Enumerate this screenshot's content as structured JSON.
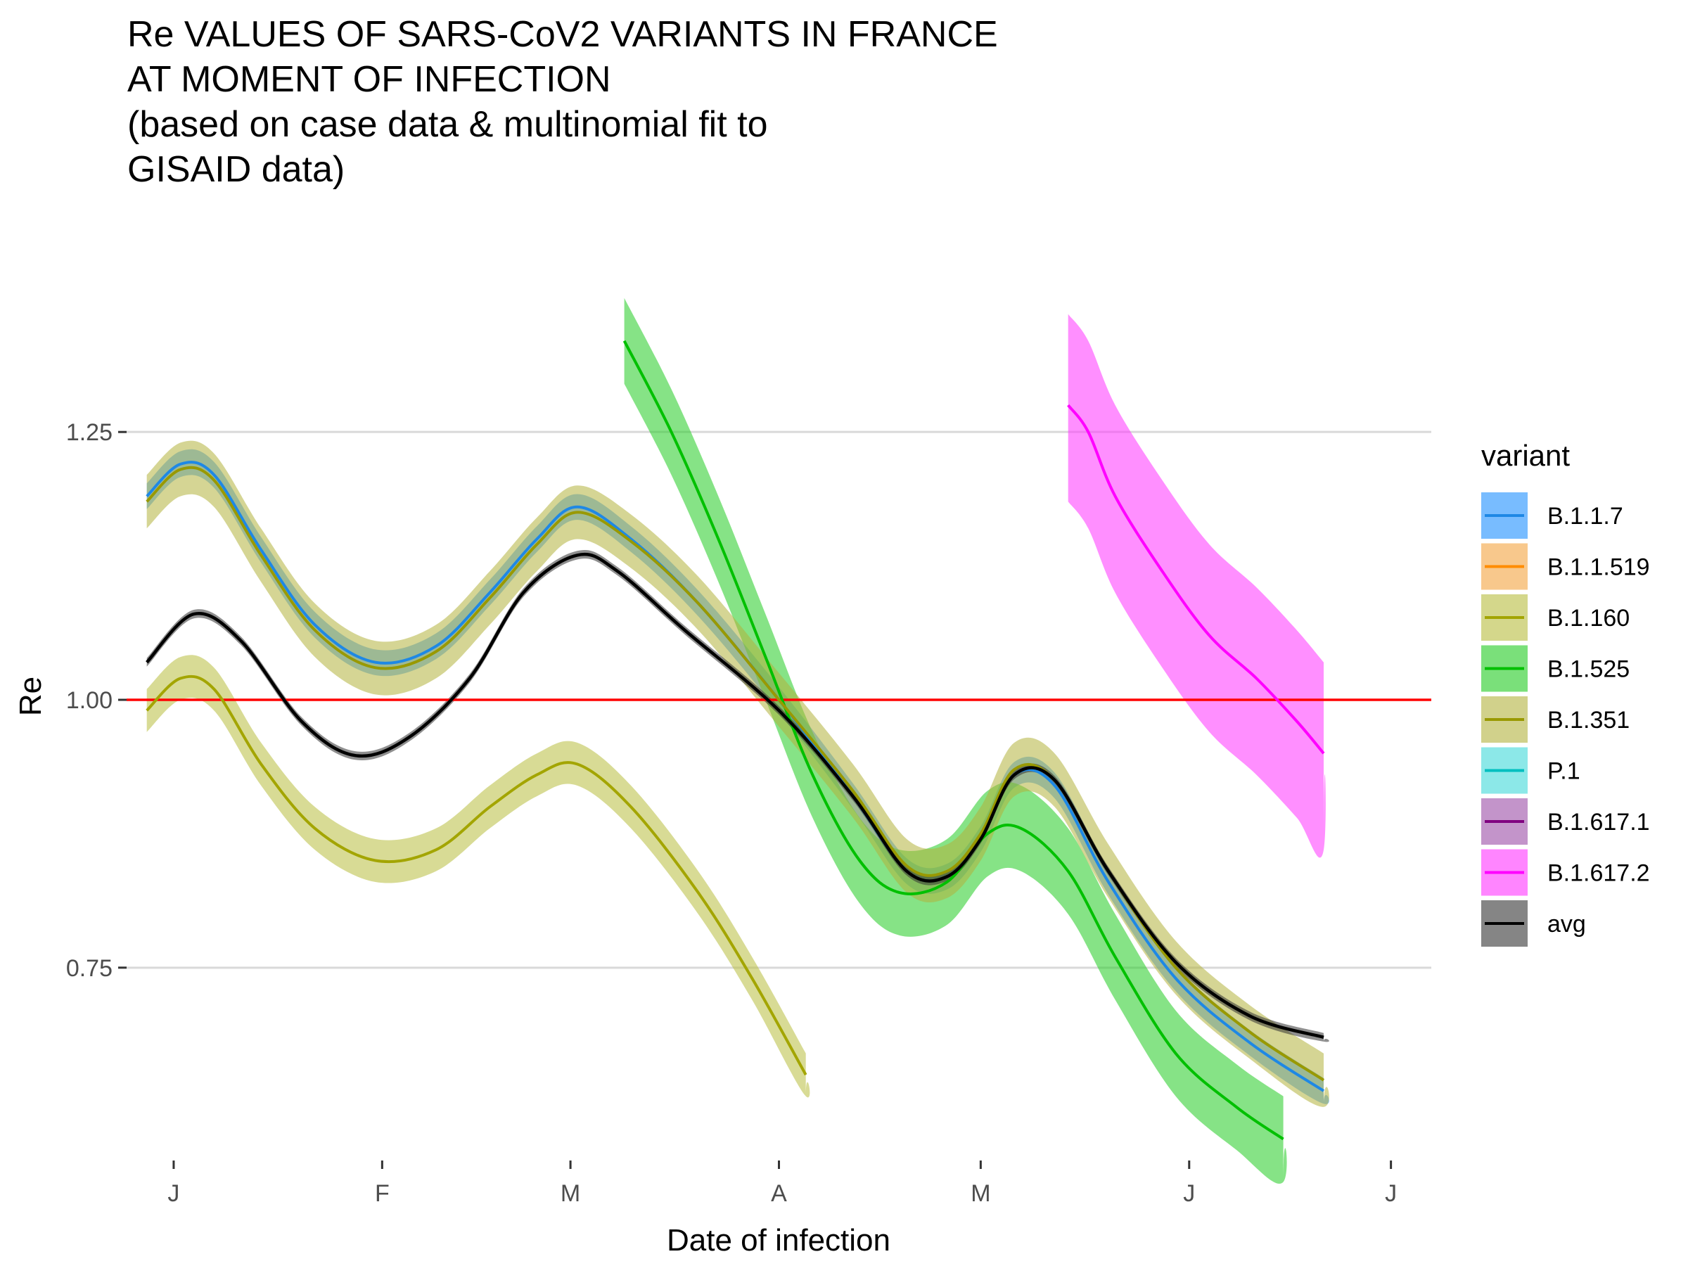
{
  "chart_data": {
    "type": "line",
    "title_lines": [
      "Re VALUES OF SARS-CoV2 VARIANTS IN FRANCE",
      "AT MOMENT OF INFECTION",
      "(based on case data & multinomial fit to",
      "GISAID data)"
    ],
    "xlabel": "Date of infection",
    "ylabel": "Re",
    "x_ticks": [
      {
        "label": "J",
        "date": "2021-01-01"
      },
      {
        "label": "F",
        "date": "2021-02-01"
      },
      {
        "label": "M",
        "date": "2021-03-01"
      },
      {
        "label": "A",
        "date": "2021-04-01"
      },
      {
        "label": "M",
        "date": "2021-05-01"
      },
      {
        "label": "J",
        "date": "2021-06-01"
      },
      {
        "label": "J",
        "date": "2021-07-01"
      }
    ],
    "xlim": [
      "2020-12-25",
      "2021-07-07"
    ],
    "y_ticks": [
      0.75,
      1.0,
      1.25
    ],
    "y_tick_labels": [
      "0.75",
      "1.00",
      "1.25"
    ],
    "ylim": [
      0.57,
      1.43
    ],
    "grid": "horizontal major gridlines",
    "reference_line": {
      "y": 1.0,
      "color": "#ff0000"
    },
    "legend": {
      "title": "variant",
      "position": "right"
    },
    "series": [
      {
        "name": "B.1.1.7",
        "color": "#1e88e5",
        "fill": "#1e90ff",
        "points": [
          [
            "2020-12-28",
            1.19
          ],
          [
            "2021-01-02",
            1.22
          ],
          [
            "2021-01-07",
            1.21
          ],
          [
            "2021-01-14",
            1.14
          ],
          [
            "2021-01-22",
            1.07
          ],
          [
            "2021-01-31",
            1.035
          ],
          [
            "2021-02-09",
            1.05
          ],
          [
            "2021-02-17",
            1.1
          ],
          [
            "2021-02-24",
            1.15
          ],
          [
            "2021-03-02",
            1.18
          ],
          [
            "2021-03-10",
            1.15
          ],
          [
            "2021-03-20",
            1.09
          ],
          [
            "2021-04-01",
            1.0
          ],
          [
            "2021-04-12",
            0.91
          ],
          [
            "2021-04-20",
            0.84
          ],
          [
            "2021-04-26",
            0.835
          ],
          [
            "2021-05-01",
            0.87
          ],
          [
            "2021-05-06",
            0.93
          ],
          [
            "2021-05-12",
            0.92
          ],
          [
            "2021-05-20",
            0.83
          ],
          [
            "2021-05-30",
            0.74
          ],
          [
            "2021-06-10",
            0.68
          ],
          [
            "2021-06-21",
            0.635
          ]
        ],
        "lower_offset": 0.012,
        "upper_offset": 0.012
      },
      {
        "name": "B.1.1.519",
        "color": "#ff8c00",
        "fill": "#f4a340",
        "points": [],
        "lower_offset": 0,
        "upper_offset": 0
      },
      {
        "name": "B.1.160",
        "color": "#a3a500",
        "fill": "#b8bd3e",
        "points": [
          [
            "2020-12-28",
            0.99
          ],
          [
            "2021-01-02",
            1.02
          ],
          [
            "2021-01-07",
            1.01
          ],
          [
            "2021-01-14",
            0.94
          ],
          [
            "2021-01-22",
            0.88
          ],
          [
            "2021-01-31",
            0.85
          ],
          [
            "2021-02-09",
            0.86
          ],
          [
            "2021-02-17",
            0.9
          ],
          [
            "2021-02-24",
            0.93
          ],
          [
            "2021-03-02",
            0.94
          ],
          [
            "2021-03-10",
            0.9
          ],
          [
            "2021-03-20",
            0.82
          ],
          [
            "2021-03-28",
            0.74
          ],
          [
            "2021-04-05",
            0.65
          ]
        ],
        "lower_offset": 0.02,
        "upper_offset": 0.02
      },
      {
        "name": "B.1.525",
        "color": "#00c000",
        "fill": "#22cc22",
        "points": [
          [
            "2021-03-09",
            1.335
          ],
          [
            "2021-03-16",
            1.25
          ],
          [
            "2021-03-23",
            1.15
          ],
          [
            "2021-03-30",
            1.04
          ],
          [
            "2021-04-06",
            0.93
          ],
          [
            "2021-04-13",
            0.85
          ],
          [
            "2021-04-19",
            0.82
          ],
          [
            "2021-04-26",
            0.83
          ],
          [
            "2021-05-02",
            0.875
          ],
          [
            "2021-05-07",
            0.88
          ],
          [
            "2021-05-14",
            0.84
          ],
          [
            "2021-05-21",
            0.76
          ],
          [
            "2021-05-30",
            0.67
          ],
          [
            "2021-06-08",
            0.62
          ],
          [
            "2021-06-15",
            0.59
          ]
        ],
        "lower_offset": 0.04,
        "upper_offset": 0.04
      },
      {
        "name": "B.1.351",
        "color": "#999900",
        "fill": "#b3b33d",
        "points": [
          [
            "2020-12-28",
            1.185
          ],
          [
            "2021-01-02",
            1.215
          ],
          [
            "2021-01-07",
            1.205
          ],
          [
            "2021-01-14",
            1.135
          ],
          [
            "2021-01-22",
            1.065
          ],
          [
            "2021-01-31",
            1.03
          ],
          [
            "2021-02-09",
            1.045
          ],
          [
            "2021-02-17",
            1.095
          ],
          [
            "2021-02-24",
            1.145
          ],
          [
            "2021-03-02",
            1.175
          ],
          [
            "2021-03-10",
            1.148
          ],
          [
            "2021-03-20",
            1.09
          ],
          [
            "2021-04-01",
            1.0
          ],
          [
            "2021-04-12",
            0.915
          ],
          [
            "2021-04-20",
            0.845
          ],
          [
            "2021-04-26",
            0.84
          ],
          [
            "2021-05-01",
            0.875
          ],
          [
            "2021-05-06",
            0.935
          ],
          [
            "2021-05-12",
            0.925
          ],
          [
            "2021-05-20",
            0.84
          ],
          [
            "2021-05-30",
            0.75
          ],
          [
            "2021-06-10",
            0.69
          ],
          [
            "2021-06-21",
            0.645
          ]
        ],
        "lower_offset": 0.025,
        "upper_offset": 0.025
      },
      {
        "name": "P.1",
        "color": "#00bfbf",
        "fill": "#40d9d9",
        "points": [],
        "lower_offset": 0,
        "upper_offset": 0
      },
      {
        "name": "B.1.617.1",
        "color": "#800080",
        "fill": "#9b4da6",
        "points": [],
        "lower_offset": 0,
        "upper_offset": 0
      },
      {
        "name": "B.1.617.2",
        "color": "#ff00ff",
        "fill": "#ff33ff",
        "points": [
          [
            "2021-05-14",
            1.275
          ],
          [
            "2021-05-17",
            1.25
          ],
          [
            "2021-05-21",
            1.19
          ],
          [
            "2021-05-28",
            1.12
          ],
          [
            "2021-06-04",
            1.06
          ],
          [
            "2021-06-11",
            1.02
          ],
          [
            "2021-06-17",
            0.98
          ],
          [
            "2021-06-21",
            0.95
          ]
        ],
        "lower_offset": 0.09,
        "upper_offset": 0.085
      },
      {
        "name": "avg",
        "color": "#000000",
        "fill": "#333333",
        "points": [
          [
            "2020-12-28",
            1.035
          ],
          [
            "2021-01-04",
            1.08
          ],
          [
            "2021-01-11",
            1.055
          ],
          [
            "2021-01-20",
            0.98
          ],
          [
            "2021-01-28",
            0.948
          ],
          [
            "2021-02-05",
            0.965
          ],
          [
            "2021-02-14",
            1.02
          ],
          [
            "2021-02-22",
            1.1
          ],
          [
            "2021-03-02",
            1.135
          ],
          [
            "2021-03-08",
            1.12
          ],
          [
            "2021-03-18",
            1.065
          ],
          [
            "2021-04-01",
            0.99
          ],
          [
            "2021-04-12",
            0.91
          ],
          [
            "2021-04-20",
            0.84
          ],
          [
            "2021-04-26",
            0.835
          ],
          [
            "2021-05-01",
            0.87
          ],
          [
            "2021-05-06",
            0.93
          ],
          [
            "2021-05-12",
            0.925
          ],
          [
            "2021-05-20",
            0.84
          ],
          [
            "2021-05-30",
            0.755
          ],
          [
            "2021-06-10",
            0.705
          ],
          [
            "2021-06-21",
            0.685
          ]
        ],
        "lower_offset": 0.004,
        "upper_offset": 0.004
      }
    ]
  }
}
